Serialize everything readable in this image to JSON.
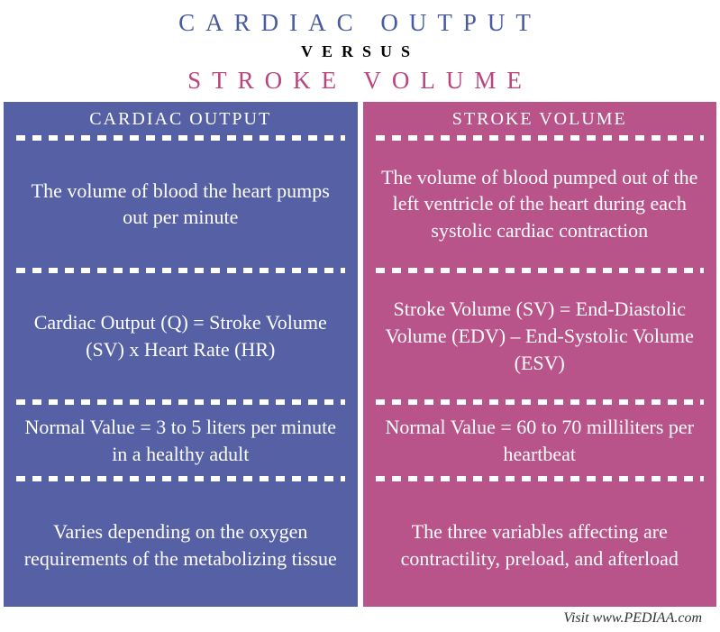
{
  "header": {
    "title_left": "CARDIAC OUTPUT",
    "versus": "VERSUS",
    "title_right": "STROKE VOLUME"
  },
  "colors": {
    "left_title": "#4a5a9e",
    "right_title": "#b9457f",
    "left_bg": "#5560a5",
    "right_bg": "#b9548a",
    "text": "#ffffff"
  },
  "left": {
    "header": "CARDIAC OUTPUT",
    "rows": [
      "The volume of blood the heart pumps out per minute",
      "Cardiac Output (Q) = Stroke Volume (SV) x Heart Rate (HR)",
      "Normal Value = 3 to 5 liters per minute in a healthy adult",
      "Varies depending on the oxygen requirements of the metabolizing tissue"
    ]
  },
  "right": {
    "header": "STROKE VOLUME",
    "rows": [
      "The volume of blood pumped out of the left ventricle of the heart during each systolic cardiac contraction",
      "Stroke Volume (SV) = End-Diastolic Volume (EDV) – End-Systolic Volume (ESV)",
      "Normal Value = 60 to 70 milliliters per heartbeat",
      "The three variables affecting are contractility, preload, and afterload"
    ]
  },
  "footer": "Visit www.PEDIAA.com"
}
